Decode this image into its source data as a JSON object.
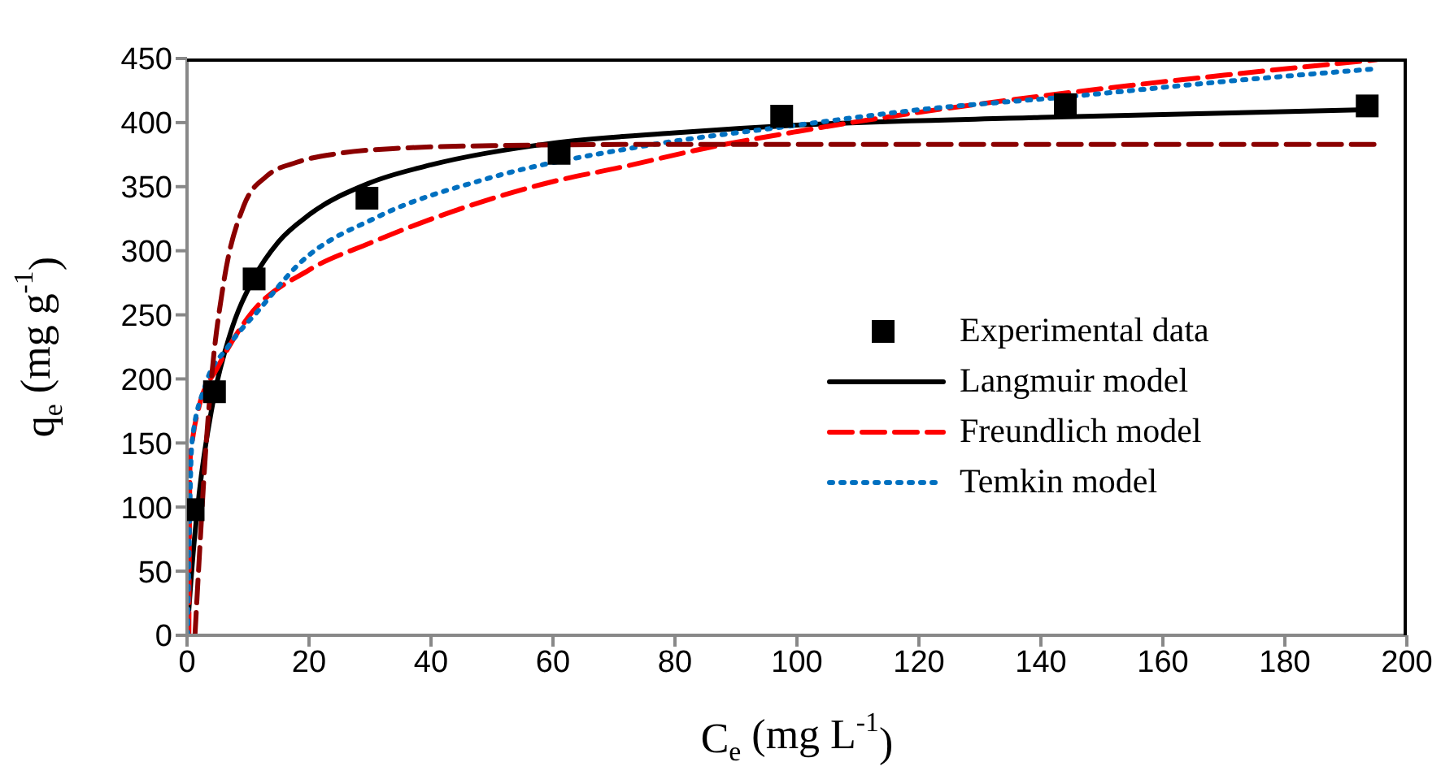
{
  "chart_data": {
    "type": "line",
    "xlabel": "C$_{e}$ (mg L$^{-1}$)",
    "ylabel": "q$_{e}$ (mg g$^{-1}$)",
    "xlim": [
      0,
      200
    ],
    "xticks": [
      0,
      20,
      40,
      60,
      80,
      100,
      120,
      140,
      160,
      180,
      200
    ],
    "ylim": [
      0,
      450
    ],
    "yticks": [
      0,
      50,
      100,
      150,
      200,
      250,
      300,
      350,
      400,
      450
    ],
    "grid": false,
    "legend": "right",
    "series": [
      {
        "name": "Experimental data",
        "type": "scatter",
        "marker": "square",
        "color": "#000000",
        "x": [
          1,
          4.5,
          11,
          29.5,
          61,
          97.5,
          144,
          193.5
        ],
        "values": [
          98,
          190,
          278,
          341,
          376,
          405,
          414,
          413
        ]
      },
      {
        "name": "Langmuir model",
        "line_style": "solid",
        "color": "#000000",
        "x": [
          0,
          1,
          2,
          4.5,
          7,
          11,
          15,
          20,
          30,
          40,
          60,
          80,
          100,
          140,
          193.5
        ],
        "values": [
          0,
          64,
          111,
          188,
          234,
          279,
          307,
          328,
          353,
          367,
          384,
          392,
          398,
          404,
          410
        ]
      },
      {
        "name": "Freundlich model",
        "line_style": "dashed",
        "color": "#ff0000",
        "x": [
          0.3,
          0.5,
          1,
          2,
          4.9,
          10,
          20,
          30,
          45,
          60,
          71,
          85,
          100,
          120,
          144,
          170,
          195
        ],
        "values": [
          0,
          136,
          156,
          179,
          208,
          248,
          285,
          306,
          333,
          354,
          365,
          380,
          393,
          408,
          423,
          437,
          449
        ]
      },
      {
        "name": "Temkin model",
        "line_style": "dotted",
        "color": "#0070c0",
        "x": [
          0.1,
          0.8,
          3,
          6.7,
          12,
          18.2,
          31.5,
          49,
          74,
          100,
          120,
          144,
          170,
          195
        ],
        "values": [
          0,
          150,
          195,
          225,
          255,
          289,
          327,
          356,
          381,
          398,
          410,
          420,
          432,
          442
        ]
      },
      {
        "line_style": "dashed",
        "color": "#8b0000",
        "x": [
          1.3,
          2,
          3,
          4,
          6,
          9.3,
          13,
          18,
          25,
          35,
          50,
          80,
          120,
          160,
          195
        ],
        "values": [
          0,
          60,
          140,
          200,
          275,
          335,
          358,
          369,
          376,
          380,
          382,
          383,
          383,
          383,
          383
        ]
      }
    ]
  }
}
